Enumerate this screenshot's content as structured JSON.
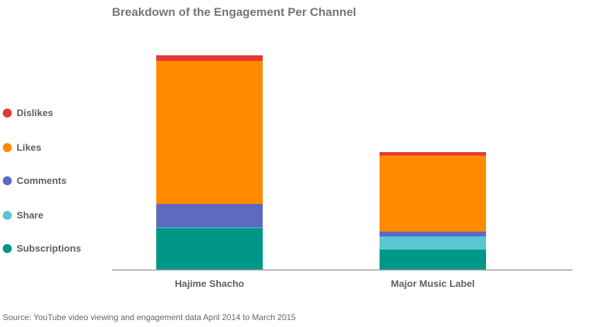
{
  "chart_data": {
    "type": "bar",
    "stacked": true,
    "title": "Breakdown of the Engagement Per Channel",
    "categories": [
      "Hajime Shacho",
      "Major Music Label"
    ],
    "series": [
      {
        "name": "Subscriptions",
        "color": "#009688",
        "values": [
          60,
          29
        ]
      },
      {
        "name": "Share",
        "color": "#5BC6D3",
        "values": [
          1,
          19
        ]
      },
      {
        "name": "Comments",
        "color": "#5C6BC0",
        "values": [
          34,
          7
        ]
      },
      {
        "name": "Likes",
        "color": "#FF8A00",
        "values": [
          207,
          110
        ]
      },
      {
        "name": "Dislikes",
        "color": "#E53935",
        "values": [
          8,
          5
        ]
      }
    ],
    "legend_order": [
      "Dislikes",
      "Likes",
      "Comments",
      "Share",
      "Subscriptions"
    ],
    "ylim": [
      0,
      310
    ],
    "grid": false,
    "legend_position": "left",
    "source": "Source: YouTube video viewing and engagement data April 2014 to March 2015"
  }
}
